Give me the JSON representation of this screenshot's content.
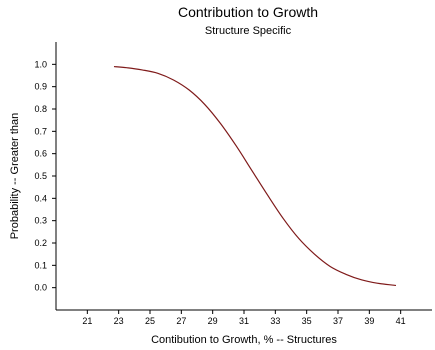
{
  "chart_data": {
    "type": "line",
    "title": "Contribution to Growth",
    "subtitle": "Structure Specific",
    "xlabel": "Contibution to Growth, % -- Structures",
    "ylabel": "Probability -- Greater than",
    "xlim": [
      19,
      43
    ],
    "ylim": [
      -0.1,
      1.1
    ],
    "x_ticks": [
      "21",
      "23",
      "25",
      "27",
      "29",
      "31",
      "33",
      "35",
      "37",
      "39",
      "41"
    ],
    "y_ticks": [
      "0.0",
      "0.1",
      "0.2",
      "0.3",
      "0.4",
      "0.5",
      "0.6",
      "0.7",
      "0.8",
      "0.9",
      "1.0"
    ],
    "grid": false,
    "series": [
      {
        "color": "#7f1a1a",
        "x": [
          22.7,
          23.5,
          24.5,
          25.5,
          26.5,
          27.5,
          28.5,
          29.5,
          30.5,
          31.5,
          32.5,
          33.5,
          34.5,
          35.5,
          36.5,
          37.5,
          38.5,
          39.5,
          40.7
        ],
        "y": [
          0.99,
          0.985,
          0.975,
          0.96,
          0.93,
          0.885,
          0.82,
          0.735,
          0.635,
          0.525,
          0.415,
          0.31,
          0.22,
          0.15,
          0.095,
          0.06,
          0.035,
          0.02,
          0.01
        ]
      }
    ]
  }
}
